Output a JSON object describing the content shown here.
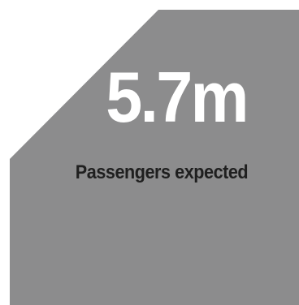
{
  "stat": {
    "value": "5.7m",
    "label": "Passengers expected"
  },
  "colors": {
    "card_fill": "#8c8c8d",
    "value_text": "#ffffff",
    "label_text": "#1f1f1f"
  }
}
